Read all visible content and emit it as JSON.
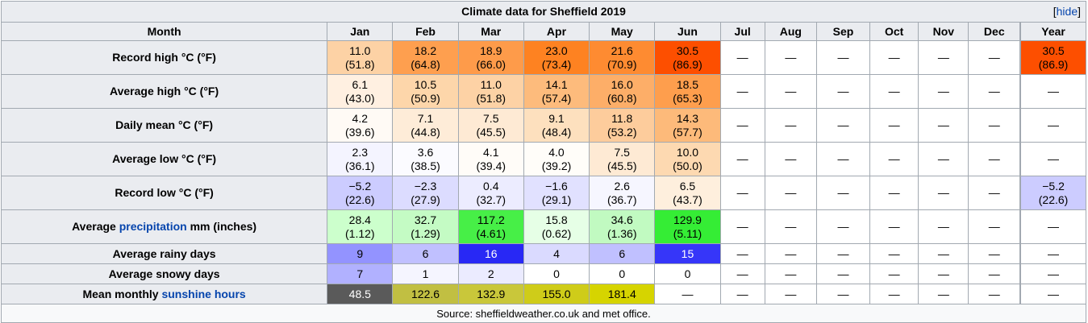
{
  "caption": {
    "title": "Climate data for Sheffield 2019",
    "hide_open": "[",
    "hide_link": "hide",
    "hide_close": "]"
  },
  "header": {
    "first": "Month",
    "months": [
      "Jan",
      "Feb",
      "Mar",
      "Apr",
      "May",
      "Jun",
      "Jul",
      "Aug",
      "Sep",
      "Oct",
      "Nov",
      "Dec"
    ],
    "year": "Year"
  },
  "rows": [
    {
      "label": "Record high °C (°F)",
      "height": 42,
      "cells": [
        {
          "c": "11.0",
          "f": "(51.8)",
          "bg": "#fdd2a5"
        },
        {
          "c": "18.2",
          "f": "(64.8)",
          "bg": "#fe9f4f"
        },
        {
          "c": "18.9",
          "f": "(66.0)",
          "bg": "#fe9b4a"
        },
        {
          "c": "23.0",
          "f": "(73.4)",
          "bg": "#fe8221"
        },
        {
          "c": "21.6",
          "f": "(70.9)",
          "bg": "#fe8b31"
        },
        {
          "c": "30.5",
          "f": "(86.9)",
          "bg": "#fd4f00"
        },
        {
          "d": "—"
        },
        {
          "d": "—"
        },
        {
          "d": "—"
        },
        {
          "d": "—"
        },
        {
          "d": "—"
        },
        {
          "d": "—"
        }
      ],
      "year": {
        "c": "30.5",
        "f": "(86.9)",
        "bg": "#fd4f00"
      }
    },
    {
      "label": "Average high °C (°F)",
      "height": 42,
      "cells": [
        {
          "c": "6.1",
          "f": "(43.0)",
          "bg": "#fff0e1"
        },
        {
          "c": "10.5",
          "f": "(50.9)",
          "bg": "#fdd6aa"
        },
        {
          "c": "11.0",
          "f": "(51.8)",
          "bg": "#fdd2a5"
        },
        {
          "c": "14.1",
          "f": "(57.4)",
          "bg": "#fdbb7c"
        },
        {
          "c": "16.0",
          "f": "(60.8)",
          "bg": "#fdae68"
        },
        {
          "c": "18.5",
          "f": "(65.3)",
          "bg": "#fe9e4d"
        },
        {
          "d": "—"
        },
        {
          "d": "—"
        },
        {
          "d": "—"
        },
        {
          "d": "—"
        },
        {
          "d": "—"
        },
        {
          "d": "—"
        }
      ],
      "year": {
        "d": "—"
      }
    },
    {
      "label": "Daily mean °C (°F)",
      "height": 42,
      "cells": [
        {
          "c": "4.2",
          "f": "(39.6)",
          "bg": "#fffaf5"
        },
        {
          "c": "7.1",
          "f": "(44.8)",
          "bg": "#feecd8"
        },
        {
          "c": "7.5",
          "f": "(45.5)",
          "bg": "#feead4"
        },
        {
          "c": "9.1",
          "f": "(48.4)",
          "bg": "#fde0be"
        },
        {
          "c": "11.8",
          "f": "(53.2)",
          "bg": "#fdcc9c"
        },
        {
          "c": "14.3",
          "f": "(57.7)",
          "bg": "#fdba7a"
        },
        {
          "d": "—"
        },
        {
          "d": "—"
        },
        {
          "d": "—"
        },
        {
          "d": "—"
        },
        {
          "d": "—"
        },
        {
          "d": "—"
        }
      ],
      "year": {
        "d": "—"
      }
    },
    {
      "label": "Average low °C (°F)",
      "height": 42,
      "cells": [
        {
          "c": "2.3",
          "f": "(36.1)",
          "bg": "#f4f4ff"
        },
        {
          "c": "3.6",
          "f": "(38.5)",
          "bg": "#fbfbff"
        },
        {
          "c": "4.1",
          "f": "(39.4)",
          "bg": "#fffcf8"
        },
        {
          "c": "4.0",
          "f": "(39.2)",
          "bg": "#fffdf9"
        },
        {
          "c": "7.5",
          "f": "(45.5)",
          "bg": "#feead4"
        },
        {
          "c": "10.0",
          "f": "(50.0)",
          "bg": "#fdd9b1"
        },
        {
          "d": "—"
        },
        {
          "d": "—"
        },
        {
          "d": "—"
        },
        {
          "d": "—"
        },
        {
          "d": "—"
        },
        {
          "d": "—"
        }
      ],
      "year": {
        "d": "—"
      }
    },
    {
      "label": "Record low °C (°F)",
      "height": 42,
      "cells": [
        {
          "c": "−5.2",
          "f": "(22.6)",
          "bg": "#ccccff"
        },
        {
          "c": "−2.3",
          "f": "(27.9)",
          "bg": "#dcdcff"
        },
        {
          "c": "0.4",
          "f": "(32.7)",
          "bg": "#ececff"
        },
        {
          "c": "−1.6",
          "f": "(29.1)",
          "bg": "#e1e1ff"
        },
        {
          "c": "2.6",
          "f": "(36.7)",
          "bg": "#f6f6ff"
        },
        {
          "c": "6.5",
          "f": "(43.7)",
          "bg": "#feefdd"
        },
        {
          "d": "—"
        },
        {
          "d": "—"
        },
        {
          "d": "—"
        },
        {
          "d": "—"
        },
        {
          "d": "—"
        },
        {
          "d": "—"
        }
      ],
      "year": {
        "c": "−5.2",
        "f": "(22.6)",
        "bg": "#ccccff"
      }
    },
    {
      "label_pre": "Average ",
      "label_link": "precipitation",
      "label_post": " mm (inches)",
      "height": 42,
      "cells": [
        {
          "c": "28.4",
          "f": "(1.12)",
          "bg": "#ccffcc"
        },
        {
          "c": "32.7",
          "f": "(1.29)",
          "bg": "#c4fbc4"
        },
        {
          "c": "117.2",
          "f": "(4.61)",
          "bg": "#47ef47"
        },
        {
          "c": "15.8",
          "f": "(0.62)",
          "bg": "#e6ffe6"
        },
        {
          "c": "34.6",
          "f": "(1.36)",
          "bg": "#c1fac1"
        },
        {
          "c": "129.9",
          "f": "(5.11)",
          "bg": "#35ed35"
        },
        {
          "d": "—"
        },
        {
          "d": "—"
        },
        {
          "d": "—"
        },
        {
          "d": "—"
        },
        {
          "d": "—"
        },
        {
          "d": "—"
        }
      ],
      "year": {
        "d": "—"
      }
    },
    {
      "label": "Average rainy days",
      "height": 25,
      "cells": [
        {
          "v": "9",
          "bg": "#9393ff"
        },
        {
          "v": "6",
          "bg": "#c0c0ff"
        },
        {
          "v": "16",
          "bg": "#2828f5",
          "fg": "#ffffff"
        },
        {
          "v": "4",
          "bg": "#dadaff"
        },
        {
          "v": "6",
          "bg": "#c0c0ff"
        },
        {
          "v": "15",
          "bg": "#3636f9",
          "fg": "#ffffff"
        },
        {
          "d": "—"
        },
        {
          "d": "—"
        },
        {
          "d": "—"
        },
        {
          "d": "—"
        },
        {
          "d": "—"
        },
        {
          "d": "—"
        }
      ],
      "year": {
        "d": "—"
      }
    },
    {
      "label": "Average snowy days",
      "height": 25,
      "cells": [
        {
          "v": "7",
          "bg": "#b1b1ff"
        },
        {
          "v": "1",
          "bg": "#f5f5ff"
        },
        {
          "v": "2",
          "bg": "#ebebff"
        },
        {
          "v": "0",
          "bg": "#ffffff"
        },
        {
          "v": "0",
          "bg": "#ffffff"
        },
        {
          "v": "0",
          "bg": "#ffffff"
        },
        {
          "d": "—"
        },
        {
          "d": "—"
        },
        {
          "d": "—"
        },
        {
          "d": "—"
        },
        {
          "d": "—"
        },
        {
          "d": "—"
        }
      ],
      "year": {
        "d": "—"
      }
    },
    {
      "label_pre": "Mean monthly ",
      "label_link": "sunshine hours",
      "label_post": "",
      "height": 25,
      "cells": [
        {
          "v": "48.5",
          "bg": "#5a5a5a",
          "fg": "#ffffff"
        },
        {
          "v": "122.6",
          "bg": "#c1bf42"
        },
        {
          "v": "132.9",
          "bg": "#c9c73a"
        },
        {
          "v": "155.0",
          "bg": "#cfcc19"
        },
        {
          "v": "181.4",
          "bg": "#d6d400"
        },
        {
          "d": "—"
        },
        {
          "d": "—"
        },
        {
          "d": "—"
        },
        {
          "d": "—"
        },
        {
          "d": "—"
        },
        {
          "d": "—"
        },
        {
          "d": "—"
        }
      ],
      "year": {
        "d": "—"
      }
    }
  ],
  "source": "Source: sheffieldweather.co.uk and met office."
}
